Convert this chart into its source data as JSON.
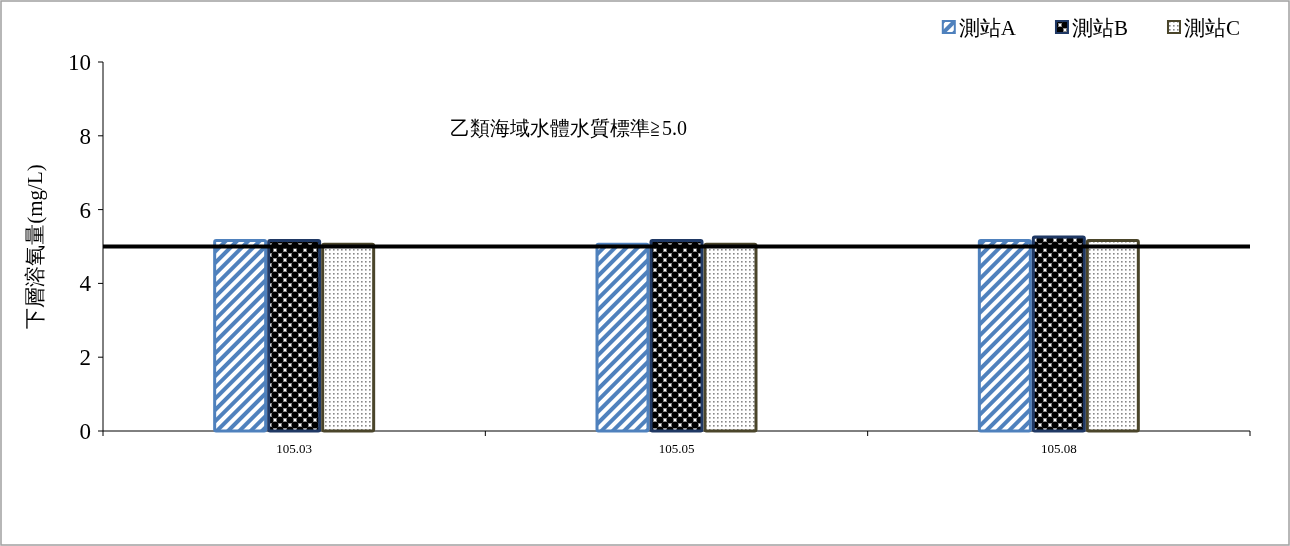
{
  "chart_data": {
    "type": "bar",
    "ylabel": "下層溶氧量(mg/L)",
    "categories": [
      "105.03",
      "105.05",
      "105.08"
    ],
    "series": [
      {
        "name": "測站A",
        "color": "#4f81bd",
        "values": [
          5.2,
          5.1,
          5.2
        ]
      },
      {
        "name": "測站B",
        "color": "#1f3864",
        "values": [
          5.2,
          5.2,
          5.3
        ]
      },
      {
        "name": "測站C",
        "color": "#4a452a",
        "values": [
          5.1,
          5.1,
          5.2
        ]
      }
    ],
    "ylim": [
      0,
      10
    ],
    "yticks": [
      0,
      2,
      4,
      6,
      8,
      10
    ],
    "ref_lines": [
      {
        "axis": "y",
        "value": 5.0,
        "color": "#000000"
      }
    ],
    "annotations": [
      "乙類海域水體水質標準≧5.0"
    ],
    "grid": false,
    "legend": "top right"
  }
}
